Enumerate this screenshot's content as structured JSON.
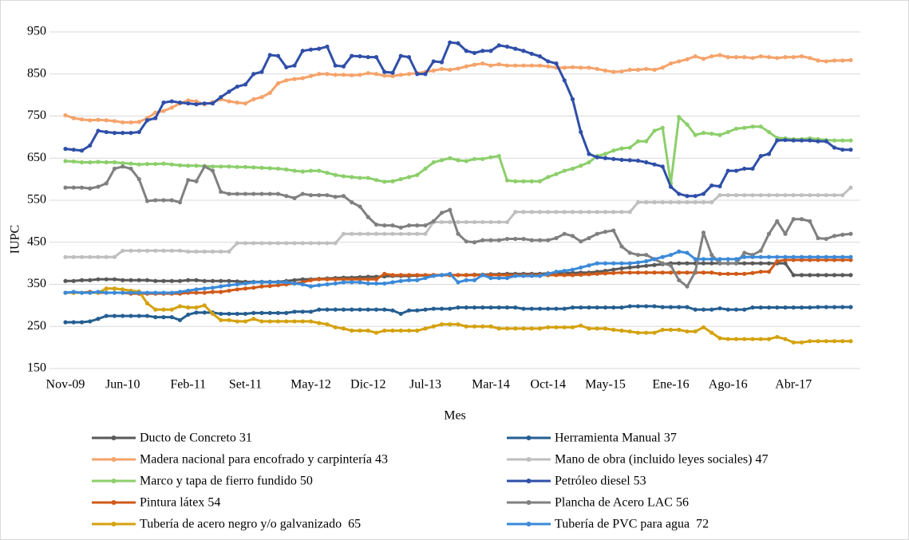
{
  "chart_data": {
    "type": "line",
    "x_label": "Mes",
    "y_label": "IUPC",
    "categories": [
      "Nov-09",
      null,
      null,
      null,
      null,
      null,
      null,
      "Jun-10",
      null,
      null,
      null,
      null,
      null,
      null,
      null,
      "Feb-11",
      null,
      null,
      null,
      null,
      null,
      null,
      "Set-11",
      null,
      null,
      null,
      null,
      null,
      null,
      null,
      "May-12",
      null,
      null,
      null,
      null,
      null,
      null,
      "Dic-12",
      null,
      null,
      null,
      null,
      null,
      null,
      "Jul-13",
      null,
      null,
      null,
      null,
      null,
      null,
      null,
      "Mar-14",
      null,
      null,
      null,
      null,
      null,
      null,
      "Oct-14",
      null,
      null,
      null,
      null,
      null,
      null,
      "May-15",
      null,
      null,
      null,
      null,
      null,
      null,
      null,
      "Ene-16",
      null,
      null,
      null,
      null,
      null,
      null,
      "Ago-16",
      null,
      null,
      null,
      null,
      null,
      null,
      null,
      "Abr-17",
      null,
      null,
      null,
      null,
      null,
      null,
      null
    ],
    "ylim": [
      150,
      950
    ],
    "yticks": [
      150,
      250,
      350,
      450,
      550,
      650,
      750,
      850,
      950
    ],
    "grid": true,
    "legend": "bottom",
    "series": [
      {
        "name": "Ducto de Concreto 31",
        "color": "#595959",
        "values": [
          358,
          358,
          360,
          360,
          362,
          362,
          362,
          360,
          360,
          360,
          360,
          358,
          358,
          358,
          358,
          360,
          360,
          358,
          358,
          358,
          358,
          357,
          356,
          356,
          356,
          356,
          356,
          358,
          360,
          362,
          362,
          363,
          364,
          365,
          366,
          366,
          367,
          368,
          368,
          369,
          370,
          370,
          370,
          371,
          371,
          372,
          372,
          372,
          372,
          372,
          373,
          373,
          374,
          374,
          375,
          375,
          375,
          375,
          375,
          376,
          376,
          377,
          377,
          378,
          378,
          380,
          382,
          385,
          388,
          390,
          392,
          394,
          396,
          398,
          400,
          400,
          400,
          400,
          400,
          400,
          400,
          400,
          400,
          400,
          400,
          400,
          400,
          400,
          400,
          372,
          372,
          372,
          372,
          372,
          372,
          372,
          372
        ]
      },
      {
        "name": "Herramienta Manual 37",
        "color": "#255e91",
        "values": [
          260,
          260,
          260,
          262,
          268,
          275,
          275,
          275,
          275,
          275,
          275,
          272,
          272,
          272,
          265,
          278,
          283,
          283,
          283,
          280,
          280,
          280,
          280,
          282,
          282,
          282,
          282,
          282,
          285,
          285,
          285,
          290,
          290,
          290,
          290,
          290,
          290,
          290,
          290,
          290,
          288,
          280,
          288,
          288,
          290,
          292,
          292,
          292,
          295,
          295,
          295,
          295,
          295,
          295,
          295,
          295,
          292,
          292,
          292,
          292,
          292,
          292,
          295,
          295,
          295,
          295,
          295,
          295,
          295,
          298,
          298,
          298,
          298,
          296,
          296,
          296,
          296,
          290,
          290,
          290,
          293,
          290,
          290,
          290,
          295,
          295,
          295,
          295,
          295,
          295,
          295,
          295,
          296,
          296,
          296,
          296,
          296
        ]
      },
      {
        "name": "Madera nacional para encofrado y carpintería 43",
        "color": "#f5a36b",
        "values": [
          752,
          745,
          742,
          740,
          741,
          740,
          738,
          735,
          735,
          736,
          745,
          758,
          762,
          770,
          780,
          787,
          785,
          778,
          783,
          790,
          785,
          782,
          780,
          790,
          795,
          805,
          828,
          835,
          838,
          840,
          845,
          850,
          850,
          848,
          848,
          847,
          848,
          852,
          850,
          846,
          845,
          848,
          850,
          852,
          855,
          858,
          862,
          860,
          863,
          868,
          872,
          875,
          870,
          873,
          870,
          870,
          870,
          870,
          870,
          868,
          865,
          865,
          866,
          865,
          865,
          862,
          858,
          855,
          856,
          860,
          860,
          862,
          860,
          865,
          875,
          880,
          885,
          892,
          886,
          892,
          895,
          890,
          890,
          890,
          888,
          892,
          890,
          888,
          890,
          890,
          892,
          888,
          882,
          880,
          882,
          882,
          883
        ]
      },
      {
        "name": "Mano de obra (incluido leyes sociales) 47",
        "color": "#bfbfbf",
        "values": [
          415,
          415,
          415,
          415,
          415,
          415,
          415,
          430,
          430,
          430,
          430,
          430,
          430,
          430,
          430,
          428,
          428,
          428,
          428,
          428,
          428,
          448,
          448,
          448,
          448,
          448,
          448,
          448,
          448,
          448,
          448,
          448,
          448,
          448,
          470,
          470,
          470,
          470,
          470,
          470,
          470,
          470,
          470,
          470,
          470,
          498,
          498,
          498,
          498,
          498,
          498,
          498,
          498,
          498,
          498,
          522,
          522,
          522,
          522,
          522,
          522,
          522,
          522,
          522,
          522,
          522,
          522,
          522,
          522,
          522,
          545,
          545,
          545,
          545,
          545,
          545,
          545,
          545,
          545,
          545,
          562,
          562,
          562,
          562,
          562,
          562,
          562,
          562,
          562,
          562,
          562,
          562,
          562,
          562,
          562,
          562,
          580
        ]
      },
      {
        "name": "Marco y tapa de fierro fundido 50",
        "color": "#8ccf6b",
        "values": [
          643,
          642,
          640,
          640,
          641,
          640,
          640,
          638,
          637,
          635,
          636,
          636,
          637,
          635,
          633,
          632,
          632,
          631,
          630,
          630,
          630,
          629,
          629,
          628,
          627,
          626,
          625,
          623,
          620,
          618,
          620,
          620,
          615,
          610,
          607,
          605,
          603,
          603,
          598,
          594,
          595,
          600,
          605,
          610,
          625,
          640,
          645,
          650,
          645,
          643,
          648,
          648,
          652,
          655,
          597,
          595,
          595,
          595,
          595,
          605,
          612,
          620,
          625,
          632,
          640,
          655,
          660,
          668,
          673,
          675,
          690,
          690,
          715,
          722,
          590,
          748,
          730,
          705,
          710,
          708,
          705,
          712,
          720,
          722,
          725,
          725,
          712,
          698,
          697,
          695,
          695,
          697,
          695,
          693,
          692,
          692,
          692
        ]
      },
      {
        "name": "Petróleo diesel 53",
        "color": "#2f4fa8",
        "values": [
          672,
          670,
          668,
          680,
          715,
          712,
          710,
          710,
          710,
          712,
          740,
          745,
          782,
          785,
          782,
          780,
          778,
          780,
          780,
          795,
          808,
          820,
          825,
          850,
          855,
          895,
          893,
          866,
          870,
          905,
          908,
          910,
          915,
          870,
          868,
          893,
          892,
          890,
          890,
          855,
          853,
          893,
          890,
          850,
          850,
          880,
          878,
          925,
          923,
          905,
          900,
          905,
          905,
          918,
          915,
          910,
          905,
          898,
          892,
          880,
          875,
          835,
          790,
          712,
          660,
          652,
          650,
          648,
          646,
          645,
          644,
          640,
          635,
          630,
          582,
          565,
          560,
          560,
          565,
          585,
          583,
          620,
          620,
          625,
          625,
          655,
          660,
          692,
          693,
          692,
          692,
          692,
          690,
          690,
          675,
          670,
          670
        ]
      },
      {
        "name": "Pintura látex 54",
        "color": "#d05a18",
        "values": [
          330,
          330,
          330,
          332,
          330,
          330,
          330,
          330,
          328,
          328,
          328,
          328,
          328,
          328,
          328,
          330,
          330,
          330,
          332,
          332,
          335,
          338,
          340,
          342,
          345,
          346,
          348,
          350,
          352,
          355,
          360,
          362,
          362,
          362,
          362,
          362,
          362,
          362,
          362,
          375,
          372,
          372,
          372,
          372,
          372,
          372,
          372,
          372,
          372,
          372,
          372,
          372,
          372,
          372,
          372,
          372,
          372,
          372,
          372,
          372,
          372,
          372,
          372,
          373,
          374,
          375,
          376,
          377,
          378,
          378,
          378,
          378,
          378,
          378,
          378,
          378,
          378,
          378,
          378,
          378,
          375,
          375,
          375,
          375,
          377,
          380,
          380,
          405,
          408,
          408,
          408,
          408,
          408,
          408,
          408,
          408,
          408
        ]
      },
      {
        "name": "Plancha de Acero LAC 56",
        "color": "#808080",
        "values": [
          580,
          580,
          580,
          578,
          582,
          590,
          625,
          630,
          625,
          600,
          548,
          550,
          550,
          550,
          545,
          598,
          595,
          630,
          620,
          570,
          565,
          565,
          565,
          565,
          565,
          565,
          565,
          560,
          555,
          565,
          562,
          562,
          562,
          558,
          560,
          545,
          535,
          510,
          492,
          490,
          490,
          485,
          490,
          490,
          490,
          500,
          520,
          527,
          470,
          452,
          450,
          455,
          455,
          455,
          458,
          458,
          458,
          455,
          455,
          455,
          460,
          470,
          465,
          452,
          460,
          470,
          475,
          478,
          440,
          425,
          420,
          420,
          410,
          400,
          395,
          360,
          345,
          380,
          473,
          420,
          400,
          400,
          400,
          425,
          420,
          430,
          470,
          500,
          470,
          505,
          505,
          500,
          460,
          458,
          465,
          468,
          470
        ]
      },
      {
        "name": "Tubería de acero negro y/o galvanizado  65",
        "color": "#d4a20e",
        "values": [
          330,
          330,
          330,
          330,
          330,
          340,
          340,
          338,
          335,
          333,
          305,
          290,
          290,
          290,
          298,
          295,
          295,
          300,
          280,
          265,
          265,
          262,
          262,
          268,
          262,
          262,
          262,
          262,
          262,
          262,
          262,
          258,
          255,
          248,
          245,
          240,
          240,
          240,
          235,
          240,
          240,
          240,
          240,
          240,
          245,
          250,
          255,
          255,
          255,
          250,
          250,
          250,
          250,
          245,
          245,
          245,
          245,
          245,
          245,
          248,
          248,
          248,
          248,
          252,
          245,
          245,
          245,
          242,
          240,
          238,
          235,
          235,
          235,
          242,
          242,
          242,
          238,
          238,
          248,
          235,
          222,
          220,
          220,
          220,
          220,
          220,
          220,
          225,
          220,
          212,
          212,
          215,
          215,
          215,
          215,
          215,
          215
        ]
      },
      {
        "name": "Tubería de PVC para agua  72",
        "color": "#3b8ad9",
        "values": [
          330,
          332,
          330,
          330,
          332,
          330,
          330,
          330,
          330,
          330,
          330,
          330,
          330,
          330,
          332,
          335,
          338,
          340,
          342,
          345,
          348,
          350,
          352,
          355,
          355,
          355,
          355,
          355,
          352,
          350,
          345,
          348,
          350,
          352,
          355,
          355,
          355,
          352,
          352,
          352,
          355,
          358,
          360,
          360,
          365,
          370,
          372,
          375,
          355,
          360,
          360,
          372,
          365,
          365,
          365,
          370,
          370,
          370,
          370,
          375,
          380,
          382,
          385,
          390,
          395,
          400,
          400,
          400,
          400,
          400,
          402,
          405,
          410,
          415,
          420,
          428,
          425,
          410,
          410,
          410,
          410,
          410,
          410,
          415,
          415,
          415,
          415,
          415,
          415,
          415,
          415,
          415,
          415,
          415,
          415,
          415,
          415
        ]
      }
    ]
  }
}
